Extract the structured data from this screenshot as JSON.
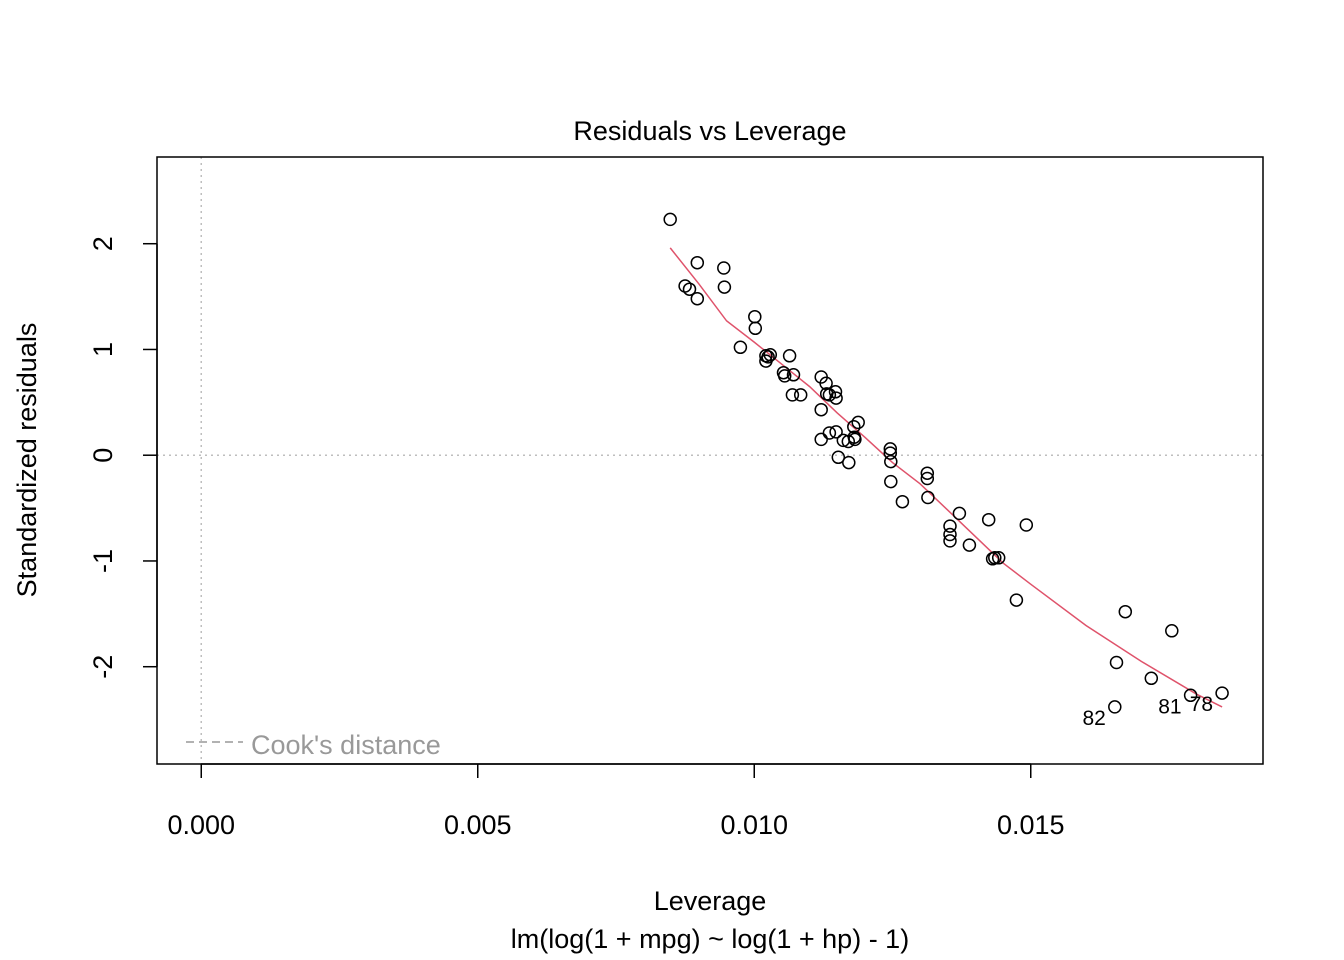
{
  "chart_data": {
    "type": "scatter",
    "title": "Residuals vs Leverage",
    "xlabel": "Leverage",
    "subtitle": "lm(log(1 + mpg) ~ log(1 + hp) - 1)",
    "ylabel": "Standardized residuals",
    "xlim": [
      -0.0008,
      0.0192
    ],
    "ylim": [
      -2.92,
      2.82
    ],
    "x_ticks": [
      0.0,
      0.005,
      0.01,
      0.015
    ],
    "x_tick_labels": [
      "0.000",
      "0.005",
      "0.010",
      "0.015"
    ],
    "y_ticks": [
      -2,
      -1,
      0,
      1,
      2
    ],
    "y_tick_labels": [
      "-2",
      "-1",
      "0",
      "1",
      "2"
    ],
    "grid": false,
    "reference_lines": {
      "horizontal_zero": true,
      "vertical_zero": true,
      "style": "dotted",
      "color": "#bebebe"
    },
    "legend": {
      "position": "bottom-left",
      "entries": [
        {
          "label": "Cook's distance",
          "style": "dashed",
          "color": "#999999"
        }
      ]
    },
    "point_color": "#000000",
    "smooth_color": "#df536b",
    "points": [
      {
        "x": 0.00848,
        "y": 2.23
      },
      {
        "x": 0.00875,
        "y": 1.6
      },
      {
        "x": 0.00883,
        "y": 1.57
      },
      {
        "x": 0.00897,
        "y": 1.82
      },
      {
        "x": 0.00897,
        "y": 1.48
      },
      {
        "x": 0.00945,
        "y": 1.77
      },
      {
        "x": 0.00946,
        "y": 1.59
      },
      {
        "x": 0.00975,
        "y": 1.02
      },
      {
        "x": 0.01001,
        "y": 1.31
      },
      {
        "x": 0.01002,
        "y": 1.2
      },
      {
        "x": 0.01021,
        "y": 0.94
      },
      {
        "x": 0.01021,
        "y": 0.89
      },
      {
        "x": 0.01025,
        "y": 0.93
      },
      {
        "x": 0.01029,
        "y": 0.95
      },
      {
        "x": 0.01053,
        "y": 0.78
      },
      {
        "x": 0.01055,
        "y": 0.75
      },
      {
        "x": 0.01064,
        "y": 0.94
      },
      {
        "x": 0.01069,
        "y": 0.57
      },
      {
        "x": 0.01071,
        "y": 0.76
      },
      {
        "x": 0.01084,
        "y": 0.57
      },
      {
        "x": 0.01121,
        "y": 0.74
      },
      {
        "x": 0.01121,
        "y": 0.43
      },
      {
        "x": 0.01121,
        "y": 0.15
      },
      {
        "x": 0.0113,
        "y": 0.68
      },
      {
        "x": 0.01131,
        "y": 0.58
      },
      {
        "x": 0.01136,
        "y": 0.57
      },
      {
        "x": 0.01136,
        "y": 0.21
      },
      {
        "x": 0.01147,
        "y": 0.6
      },
      {
        "x": 0.01148,
        "y": 0.54
      },
      {
        "x": 0.01148,
        "y": 0.22
      },
      {
        "x": 0.01152,
        "y": -0.02
      },
      {
        "x": 0.01161,
        "y": 0.14
      },
      {
        "x": 0.0117,
        "y": 0.13
      },
      {
        "x": 0.01171,
        "y": -0.07
      },
      {
        "x": 0.0118,
        "y": 0.27
      },
      {
        "x": 0.01181,
        "y": 0.17
      },
      {
        "x": 0.01182,
        "y": 0.15
      },
      {
        "x": 0.01188,
        "y": 0.31
      },
      {
        "x": 0.01246,
        "y": 0.06
      },
      {
        "x": 0.01246,
        "y": 0.02
      },
      {
        "x": 0.01247,
        "y": -0.06
      },
      {
        "x": 0.01247,
        "y": -0.25
      },
      {
        "x": 0.01268,
        "y": -0.44
      },
      {
        "x": 0.01313,
        "y": -0.17
      },
      {
        "x": 0.01313,
        "y": -0.22
      },
      {
        "x": 0.01314,
        "y": -0.4
      },
      {
        "x": 0.01354,
        "y": -0.67
      },
      {
        "x": 0.01354,
        "y": -0.75
      },
      {
        "x": 0.01354,
        "y": -0.81
      },
      {
        "x": 0.01371,
        "y": -0.55
      },
      {
        "x": 0.01389,
        "y": -0.85
      },
      {
        "x": 0.01424,
        "y": -0.61
      },
      {
        "x": 0.01431,
        "y": -0.98
      },
      {
        "x": 0.01435,
        "y": -0.97
      },
      {
        "x": 0.01442,
        "y": -0.97
      },
      {
        "x": 0.01474,
        "y": -1.37
      },
      {
        "x": 0.01492,
        "y": -0.66
      },
      {
        "x": 0.01652,
        "y": -2.38
      },
      {
        "x": 0.01655,
        "y": -1.96
      },
      {
        "x": 0.01671,
        "y": -1.48
      },
      {
        "x": 0.01718,
        "y": -2.11
      },
      {
        "x": 0.01755,
        "y": -1.66
      },
      {
        "x": 0.01789,
        "y": -2.27
      },
      {
        "x": 0.01846,
        "y": -2.25
      }
    ],
    "point_labels": [
      {
        "label": "82",
        "x": 0.01652,
        "y": -2.38
      },
      {
        "label": "81",
        "x": 0.01789,
        "y": -2.27
      },
      {
        "label": "78",
        "x": 0.01846,
        "y": -2.25
      }
    ],
    "smooth_line": [
      {
        "x": 0.00848,
        "y": 1.96
      },
      {
        "x": 0.009,
        "y": 1.62
      },
      {
        "x": 0.0095,
        "y": 1.27
      },
      {
        "x": 0.01,
        "y": 1.07
      },
      {
        "x": 0.0105,
        "y": 0.86
      },
      {
        "x": 0.011,
        "y": 0.65
      },
      {
        "x": 0.0115,
        "y": 0.4
      },
      {
        "x": 0.012,
        "y": 0.17
      },
      {
        "x": 0.0125,
        "y": -0.07
      },
      {
        "x": 0.013,
        "y": -0.27
      },
      {
        "x": 0.0135,
        "y": -0.52
      },
      {
        "x": 0.014,
        "y": -0.77
      },
      {
        "x": 0.0145,
        "y": -1.02
      },
      {
        "x": 0.015,
        "y": -1.22
      },
      {
        "x": 0.016,
        "y": -1.61
      },
      {
        "x": 0.017,
        "y": -1.95
      },
      {
        "x": 0.018,
        "y": -2.26
      },
      {
        "x": 0.01846,
        "y": -2.38
      }
    ]
  }
}
